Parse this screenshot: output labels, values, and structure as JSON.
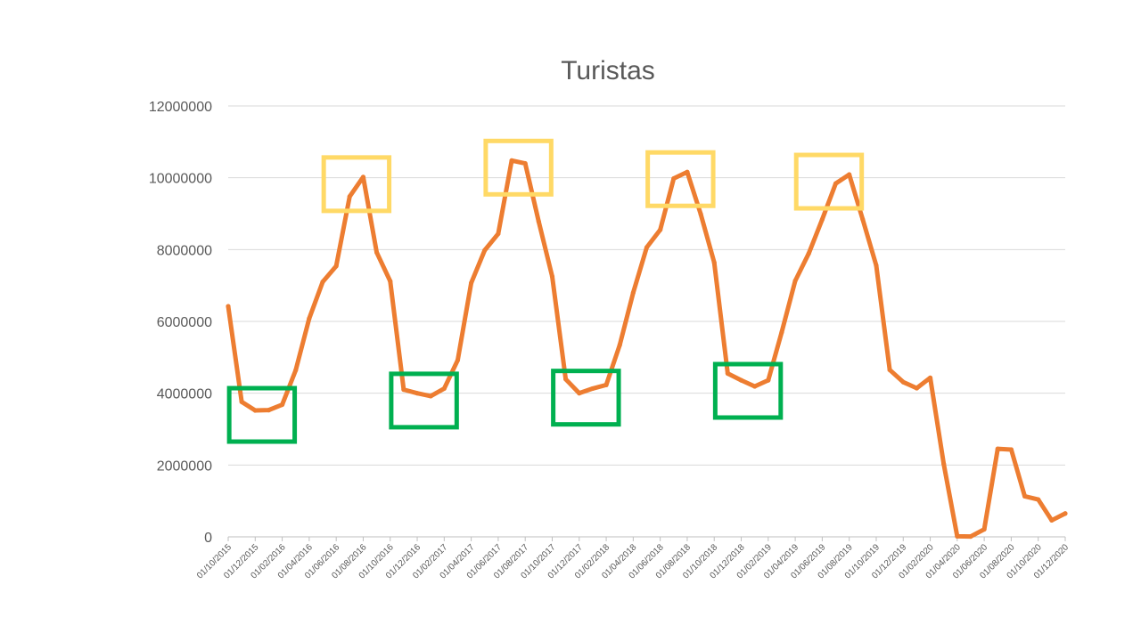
{
  "chart_data": {
    "type": "line",
    "title": "Turistas",
    "xlabel": "",
    "ylabel": "",
    "ylim": [
      0,
      12000000
    ],
    "yticks": [
      0,
      2000000,
      4000000,
      6000000,
      8000000,
      10000000,
      12000000
    ],
    "ytick_labels": [
      "0",
      "2000000",
      "4000000",
      "6000000",
      "8000000",
      "10000000",
      "12000000"
    ],
    "grid": true,
    "legend": "none",
    "x": [
      "01/10/2015",
      "01/11/2015",
      "01/12/2015",
      "01/01/2016",
      "01/02/2016",
      "01/03/2016",
      "01/04/2016",
      "01/05/2016",
      "01/06/2016",
      "01/07/2016",
      "01/08/2016",
      "01/09/2016",
      "01/10/2016",
      "01/11/2016",
      "01/12/2016",
      "01/01/2017",
      "01/02/2017",
      "01/03/2017",
      "01/04/2017",
      "01/05/2017",
      "01/06/2017",
      "01/07/2017",
      "01/08/2017",
      "01/09/2017",
      "01/10/2017",
      "01/11/2017",
      "01/12/2017",
      "01/01/2018",
      "01/02/2018",
      "01/03/2018",
      "01/04/2018",
      "01/05/2018",
      "01/06/2018",
      "01/07/2018",
      "01/08/2018",
      "01/09/2018",
      "01/10/2018",
      "01/11/2018",
      "01/12/2018",
      "01/01/2019",
      "01/02/2019",
      "01/03/2019",
      "01/04/2019",
      "01/05/2019",
      "01/06/2019",
      "01/07/2019",
      "01/08/2019",
      "01/09/2019",
      "01/10/2019",
      "01/11/2019",
      "01/12/2019",
      "01/01/2020",
      "01/02/2020",
      "01/03/2020",
      "01/04/2020",
      "01/05/2020",
      "01/06/2020",
      "01/07/2020",
      "01/08/2020",
      "01/09/2020",
      "01/10/2020",
      "01/11/2020",
      "01/12/2020"
    ],
    "xtick_labels": [
      "01/10/2015",
      "01/12/2015",
      "01/02/2016",
      "01/04/2016",
      "01/06/2016",
      "01/08/2016",
      "01/10/2016",
      "01/12/2016",
      "01/02/2017",
      "01/04/2017",
      "01/06/2017",
      "01/08/2017",
      "01/10/2017",
      "01/12/2017",
      "01/02/2018",
      "01/04/2018",
      "01/06/2018",
      "01/08/2018",
      "01/10/2018",
      "01/12/2018",
      "01/02/2019",
      "01/04/2019",
      "01/06/2019",
      "01/08/2019",
      "01/10/2019",
      "01/12/2019",
      "01/02/2020",
      "01/04/2020",
      "01/06/2020",
      "01/08/2020",
      "01/10/2020",
      "01/12/2020"
    ],
    "series": [
      {
        "color": "#ed7d31",
        "values": [
          6420000,
          3760000,
          3520000,
          3530000,
          3680000,
          4640000,
          6080000,
          7100000,
          7540000,
          9480000,
          10020000,
          7920000,
          7120000,
          4100000,
          4000000,
          3920000,
          4130000,
          4920000,
          7070000,
          7980000,
          8440000,
          10480000,
          10400000,
          8780000,
          7250000,
          4390000,
          4000000,
          4130000,
          4230000,
          5340000,
          6800000,
          8060000,
          8550000,
          9980000,
          10160000,
          8990000,
          7640000,
          4550000,
          4360000,
          4190000,
          4360000,
          5700000,
          7130000,
          7890000,
          8840000,
          9840000,
          10090000,
          8840000,
          7560000,
          4650000,
          4310000,
          4140000,
          4430000,
          2030000,
          15000,
          10000,
          210000,
          2450000,
          2430000,
          1130000,
          1040000,
          460000,
          650000
        ]
      }
    ],
    "highlights": [
      {
        "kind": "peak",
        "color": "#ffd966",
        "from": "01/06/2016",
        "to": "01/09/2016"
      },
      {
        "kind": "peak",
        "color": "#ffd966",
        "from": "01/06/2017",
        "to": "01/09/2017"
      },
      {
        "kind": "peak",
        "color": "#ffd966",
        "from": "01/06/2018",
        "to": "01/09/2018"
      },
      {
        "kind": "peak",
        "color": "#ffd966",
        "from": "01/05/2019",
        "to": "01/08/2019"
      },
      {
        "kind": "trough",
        "color": "#00b050",
        "from": "01/11/2015",
        "to": "01/02/2016"
      },
      {
        "kind": "trough",
        "color": "#00b050",
        "from": "01/11/2016",
        "to": "01/02/2017"
      },
      {
        "kind": "trough",
        "color": "#00b050",
        "from": "01/11/2017",
        "to": "01/02/2018"
      },
      {
        "kind": "trough",
        "color": "#00b050",
        "from": "01/11/2018",
        "to": "01/02/2019"
      }
    ]
  }
}
